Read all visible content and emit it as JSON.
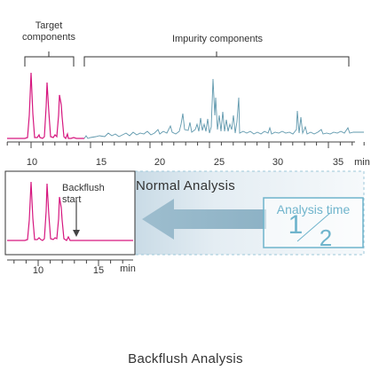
{
  "diagram_data": {
    "top": {
      "label_target": [
        "Target",
        "components"
      ],
      "label_impurity": "Impurity components",
      "x_ticks": [
        "10",
        "15",
        "20",
        "25",
        "30",
        "35"
      ],
      "x_unit": "min",
      "caption": "Normal Analysis"
    },
    "bottom": {
      "label_backflush": [
        "Backflush",
        "start"
      ],
      "x_ticks": [
        "10",
        "15"
      ],
      "x_unit": "min",
      "caption": "Backflush Analysis",
      "analysis_time_label": "Analysis time",
      "fraction_numerator": "1",
      "fraction_denominator": "2"
    },
    "colors": {
      "target_peaks": "#d6177f",
      "impurity_peaks": "#5f98ad",
      "arrow": "#8fb3c6",
      "box_border": "#6fb4cc",
      "panel_fill": "#e3ecf2",
      "axis": "#444444"
    }
  }
}
